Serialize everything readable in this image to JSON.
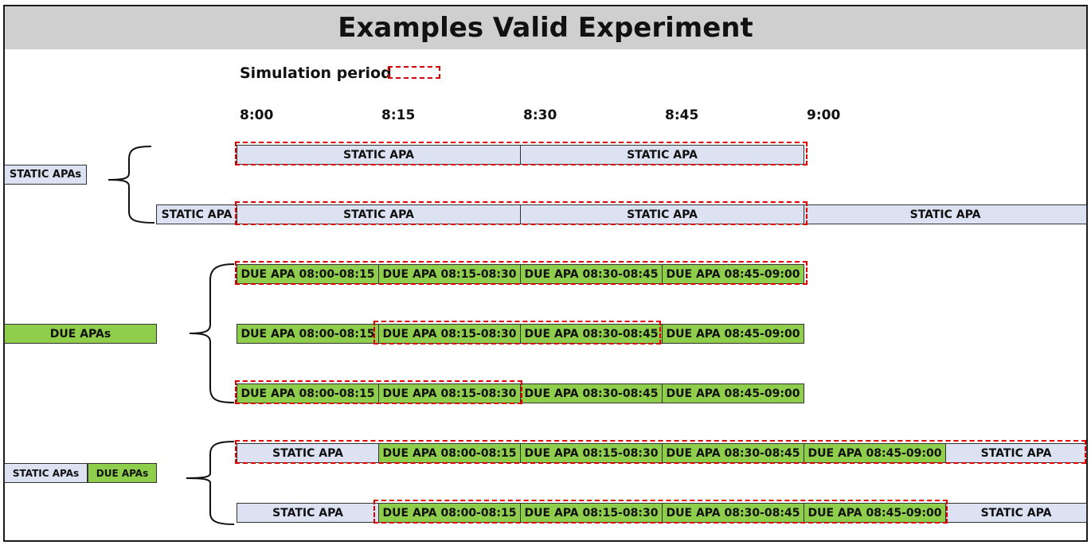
{
  "title": "Examples Valid Experiment",
  "legend": {
    "label": "Simulation period",
    "swatch_color": "#e00000"
  },
  "time_axis": [
    "8:00",
    "8:15",
    "8:30",
    "8:45",
    "9:00"
  ],
  "colors": {
    "static": "#dce2f1",
    "due": "#8fce4d",
    "simulation_border": "#e00000"
  },
  "groups": [
    {
      "labels": [
        {
          "text": "STATIC APAs",
          "kind": "static"
        }
      ]
    },
    {
      "labels": [
        {
          "text": "DUE APAs",
          "kind": "due"
        }
      ]
    },
    {
      "labels": [
        {
          "text": "STATIC APAs",
          "kind": "static"
        },
        {
          "text": "DUE APAs",
          "kind": "due"
        }
      ]
    }
  ],
  "rows": [
    {
      "group": 0,
      "cells": [
        {
          "text": "STATIC APA",
          "kind": "static"
        },
        {
          "text": "STATIC APA",
          "kind": "static"
        }
      ]
    },
    {
      "group": 0,
      "cells": [
        {
          "text": "STATIC APA",
          "kind": "static"
        },
        {
          "text": "STATIC APA",
          "kind": "static"
        },
        {
          "text": "STATIC APA",
          "kind": "static"
        },
        {
          "text": "STATIC APA",
          "kind": "static"
        }
      ]
    },
    {
      "group": 1,
      "cells": [
        {
          "text": "DUE APA 08:00-08:15",
          "kind": "due"
        },
        {
          "text": "DUE APA 08:15-08:30",
          "kind": "due"
        },
        {
          "text": "DUE APA 08:30-08:45",
          "kind": "due"
        },
        {
          "text": "DUE APA 08:45-09:00",
          "kind": "due"
        }
      ]
    },
    {
      "group": 1,
      "cells": [
        {
          "text": "DUE APA 08:00-08:15",
          "kind": "due"
        },
        {
          "text": "DUE APA 08:15-08:30",
          "kind": "due"
        },
        {
          "text": "DUE APA 08:30-08:45",
          "kind": "due"
        },
        {
          "text": "DUE APA 08:45-09:00",
          "kind": "due"
        }
      ]
    },
    {
      "group": 1,
      "cells": [
        {
          "text": "DUE APA 08:00-08:15",
          "kind": "due"
        },
        {
          "text": "DUE APA 08:15-08:30",
          "kind": "due"
        },
        {
          "text": "DUE APA 08:30-08:45",
          "kind": "due"
        },
        {
          "text": "DUE APA 08:45-09:00",
          "kind": "due"
        }
      ]
    },
    {
      "group": 2,
      "cells": [
        {
          "text": "STATIC APA",
          "kind": "static"
        },
        {
          "text": "DUE APA 08:00-08:15",
          "kind": "due"
        },
        {
          "text": "DUE APA 08:15-08:30",
          "kind": "due"
        },
        {
          "text": "DUE APA 08:30-08:45",
          "kind": "due"
        },
        {
          "text": "DUE APA 08:45-09:00",
          "kind": "due"
        },
        {
          "text": "STATIC APA",
          "kind": "static"
        }
      ]
    },
    {
      "group": 2,
      "cells": [
        {
          "text": "STATIC APA",
          "kind": "static"
        },
        {
          "text": "DUE APA 08:00-08:15",
          "kind": "due"
        },
        {
          "text": "DUE APA 08:15-08:30",
          "kind": "due"
        },
        {
          "text": "DUE APA 08:30-08:45",
          "kind": "due"
        },
        {
          "text": "DUE APA 08:45-09:00",
          "kind": "due"
        },
        {
          "text": "STATIC APA",
          "kind": "static"
        }
      ]
    }
  ]
}
